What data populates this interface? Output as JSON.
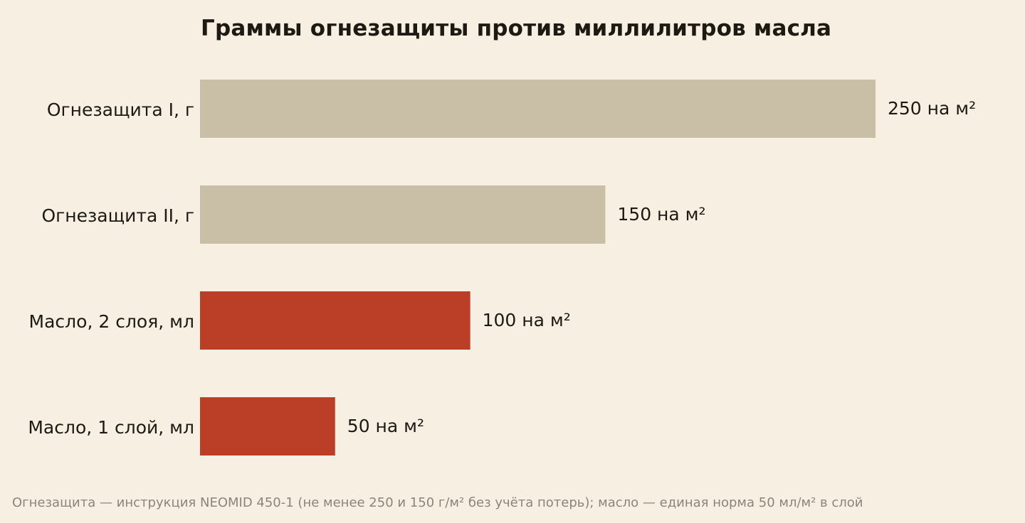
{
  "chart_data": {
    "type": "bar",
    "orientation": "horizontal",
    "title": "Граммы огнезащиты против миллилитров масла",
    "categories": [
      "Огнезащита I, г",
      "Огнезащита II, г",
      "Масло, 2 слоя, мл",
      "Масло, 1 слой, мл"
    ],
    "values": [
      250,
      150,
      100,
      50
    ],
    "value_labels": [
      "250 на м²",
      "150 на м²",
      "100 на м²",
      "50 на м²"
    ],
    "colors": [
      "#c9bfa7",
      "#c9bfa7",
      "#bb3e26",
      "#bb3e26"
    ],
    "xlim": [
      0,
      250
    ],
    "grid": false,
    "xlabel": "",
    "ylabel": ""
  },
  "footnote": "Огнезащита — инструкция NEOMID 450-1 (не менее 250 и 150 г/м² без учёта потерь); масло — единая норма 50 мл/м² в слой",
  "colors": {
    "background": "#f6efe2",
    "text": "#1d1a14",
    "muted": "#8b8579"
  }
}
